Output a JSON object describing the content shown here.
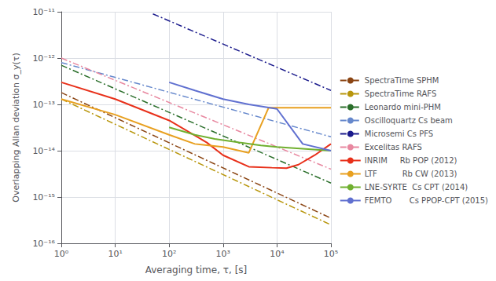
{
  "chart_data": {
    "type": "line",
    "xlabel": "Averaging time, τ, [s]",
    "ylabel": "Overlapping Allan deviation σ_y(τ)",
    "log": true,
    "grid": true,
    "legend": "right",
    "xlim": [
      1,
      100000
    ],
    "ylim": [
      1e-16,
      1e-11
    ],
    "xticks": [
      {
        "value": 1,
        "label": "10⁰"
      },
      {
        "value": 10,
        "label": "10¹"
      },
      {
        "value": 100,
        "label": "10²"
      },
      {
        "value": 1000,
        "label": "10³"
      },
      {
        "value": 10000,
        "label": "10⁴"
      },
      {
        "value": 100000,
        "label": "10⁵"
      }
    ],
    "yticks": [
      {
        "value": 1e-16,
        "label": "10⁻¹⁶"
      },
      {
        "value": 1e-15,
        "label": "10⁻¹⁵"
      },
      {
        "value": 1e-14,
        "label": "10⁻¹⁴"
      },
      {
        "value": 1e-13,
        "label": "10⁻¹³"
      },
      {
        "value": 1e-12,
        "label": "10⁻¹²"
      },
      {
        "value": 1e-11,
        "label": "10⁻¹¹"
      }
    ],
    "series": [
      {
        "name": "SpectraTime SPHM",
        "color": "#8B4513",
        "line_style": "dashdot",
        "x": [
          1,
          100000
        ],
        "values": [
          1.8e-13,
          3.5e-16
        ]
      },
      {
        "name": "SpectraTime RAFS",
        "color": "#b8960c",
        "line_style": "dashdot",
        "x": [
          1,
          100000
        ],
        "values": [
          1.3e-13,
          2.5e-16
        ]
      },
      {
        "name": "Leonardo mini-PHM",
        "color": "#2a6e2a",
        "line_style": "dashdot",
        "x": [
          1,
          100000
        ],
        "values": [
          7e-13,
          2e-15
        ]
      },
      {
        "name": "Oscilloquartz Cs beam",
        "color": "#6688cc",
        "line_style": "dashdot",
        "x": [
          1,
          100000
        ],
        "values": [
          8e-13,
          2e-14
        ]
      },
      {
        "name": "Microsemi Cs PFS",
        "color": "#1a1a8c",
        "line_style": "dashdot",
        "x": [
          50,
          100000
        ],
        "values": [
          9e-12,
          2e-13
        ]
      },
      {
        "name": "Excelitas RAFS",
        "color": "#e888a0",
        "line_style": "dashdot",
        "x": [
          1,
          100000
        ],
        "values": [
          1e-12,
          4e-15
        ]
      },
      {
        "name": "INRIM     Rb POP (2012)",
        "color": "#e8301a",
        "line_style": "solid",
        "x": [
          1.0,
          10,
          100,
          500,
          1000,
          3000,
          8000,
          15000,
          25000,
          50000,
          100000
        ],
        "values": [
          3e-13,
          1.3e-13,
          4.5e-14,
          1.5e-14,
          8e-15,
          4.5e-15,
          4.3e-15,
          4.2e-15,
          5e-15,
          8e-15,
          1.4e-14
        ]
      },
      {
        "name": "LTF          Rb CW (2013)",
        "color": "#e8a020",
        "line_style": "solid",
        "x": [
          1.0,
          10,
          100,
          300,
          1000,
          3000,
          7000,
          10000,
          50000,
          100000
        ],
        "values": [
          1.3e-13,
          6e-14,
          2.2e-14,
          1.4e-14,
          1.2e-14,
          9e-15,
          8.5e-14,
          8.5e-14,
          8.5e-14,
          8.5e-14
        ]
      },
      {
        "name": "LNE-SYRTE  Cs CPT (2014)",
        "color": "#70b030",
        "line_style": "solid",
        "x": [
          100,
          300,
          700,
          2000,
          5000,
          10000,
          30000,
          100000
        ],
        "values": [
          3.2e-14,
          2.2e-14,
          1.8e-14,
          1.5e-14,
          1.3e-14,
          1.2e-14,
          1.1e-14,
          1e-14
        ]
      },
      {
        "name": "FEMTO       Cs PPOP-CPT (2015)",
        "color": "#6070d0",
        "line_style": "solid",
        "x": [
          100,
          300,
          1000,
          3000,
          10000,
          30000,
          100000
        ],
        "values": [
          3e-13,
          2e-13,
          1.3e-13,
          1e-13,
          8e-14,
          1.4e-14,
          1e-14
        ]
      }
    ]
  }
}
